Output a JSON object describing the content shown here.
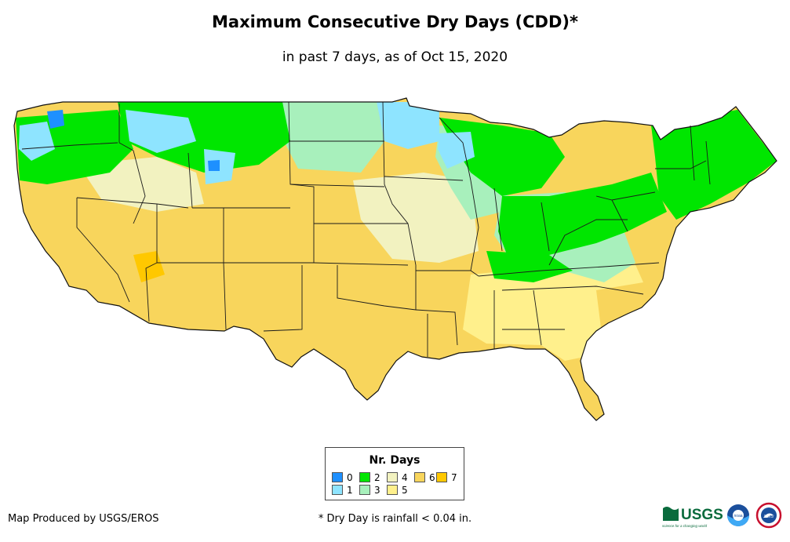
{
  "title": "Maximum Consecutive Dry Days (CDD)*",
  "subtitle": "in past 7 days, as of Oct 15, 2020",
  "legend": {
    "title": "Nr. Days",
    "items": [
      {
        "label": "0",
        "color": "#1e90ff"
      },
      {
        "label": "1",
        "color": "#8ee4ff"
      },
      {
        "label": "2",
        "color": "#00e600"
      },
      {
        "label": "3",
        "color": "#a8f0bc"
      },
      {
        "label": "4",
        "color": "#f2f2c0"
      },
      {
        "label": "5",
        "color": "#fff08c"
      },
      {
        "label": "6",
        "color": "#f8d55c"
      },
      {
        "label": "7",
        "color": "#ffc800"
      }
    ]
  },
  "credit": "Map Produced by USGS/EROS",
  "footnote": "* Dry Day is rainfall < 0.04 in.",
  "logos": {
    "usgs": "USGS",
    "usgs_tagline": "science for a changing world",
    "noaa": "noaa",
    "nws": "NWS"
  }
}
